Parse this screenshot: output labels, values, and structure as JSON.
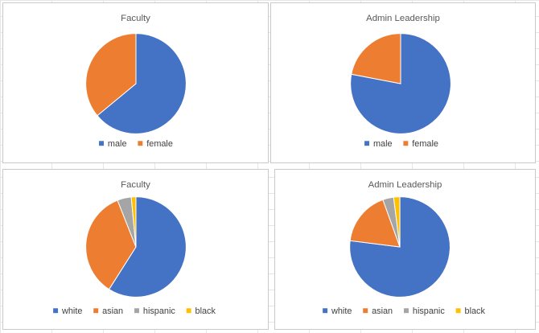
{
  "chart_data": [
    {
      "type": "pie",
      "title": "Faculty",
      "categories": [
        "male",
        "female"
      ],
      "values": [
        64,
        36
      ],
      "colors": [
        "#4472C4",
        "#ED7D31"
      ],
      "legend": "bottom"
    },
    {
      "type": "pie",
      "title": "Admin Leadership",
      "categories": [
        "male",
        "female"
      ],
      "values": [
        78,
        22
      ],
      "colors": [
        "#4472C4",
        "#ED7D31"
      ],
      "legend": "bottom"
    },
    {
      "type": "pie",
      "title": "Faculty",
      "categories": [
        "white",
        "asian",
        "hispanic",
        "black"
      ],
      "values": [
        59,
        35,
        4.5,
        1.5
      ],
      "colors": [
        "#4472C4",
        "#ED7D31",
        "#A5A5A5",
        "#FFC000"
      ],
      "legend": "bottom"
    },
    {
      "type": "pie",
      "title": "Admin Leadership",
      "categories": [
        "white",
        "asian",
        "hispanic",
        "black"
      ],
      "values": [
        77,
        17.5,
        3.5,
        2
      ],
      "colors": [
        "#4472C4",
        "#ED7D31",
        "#A5A5A5",
        "#FFC000"
      ],
      "legend": "bottom"
    }
  ]
}
